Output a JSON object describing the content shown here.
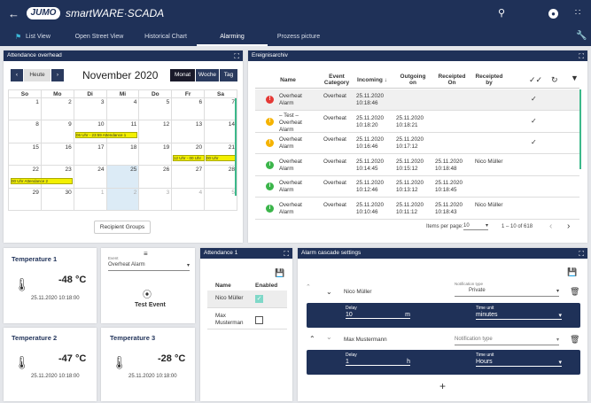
{
  "header": {
    "logo": "JUMO",
    "title": "smartWARE·SCADA"
  },
  "nav": {
    "items": [
      "List View",
      "Open Street View",
      "Historical Chart",
      "Alarming",
      "Prozess picture"
    ]
  },
  "calendar": {
    "panel_title": "Attendance overhead",
    "today": "Heute",
    "month": "November 2020",
    "views": [
      "Monat",
      "Woche",
      "Tag"
    ],
    "days": [
      "So",
      "Mo",
      "Di",
      "Mi",
      "Do",
      "Fr",
      "Sa"
    ],
    "weeks": [
      [
        "1",
        "2",
        "3",
        "4",
        "5",
        "6",
        "7"
      ],
      [
        "8",
        "9",
        "10",
        "11",
        "12",
        "13",
        "14"
      ],
      [
        "15",
        "16",
        "17",
        "18",
        "19",
        "20",
        "21"
      ],
      [
        "22",
        "23",
        "24",
        "25",
        "26",
        "27",
        "28"
      ],
      [
        "29",
        "30",
        "1",
        "2",
        "3",
        "4",
        "5"
      ]
    ],
    "events": {
      "e1": "06 Uhr - 23:59 Attendance 1",
      "e2": "12 Uhr - 00 Uhr",
      "e3": "00 Uhr Attendance 2",
      "e4": "00 Uhr"
    },
    "recipient_groups": "Recipient Groups"
  },
  "archive": {
    "panel_title": "Ereignisarchiv",
    "columns": [
      "Name",
      "Event Category",
      "Incoming",
      "Outgoing on",
      "Receipted On",
      "Receipted by"
    ],
    "rows": [
      {
        "name": "Overheat Alarm",
        "cat": "Overheat",
        "in": "25.11.2020 10:18:46",
        "out": "",
        "rec": "",
        "by": "",
        "status": "red"
      },
      {
        "name": "– Test – Overheat Alarm",
        "cat": "Overheat",
        "in": "25.11.2020 10:18:20",
        "out": "25.11.2020 10:18:21",
        "rec": "",
        "by": "",
        "status": "yellow"
      },
      {
        "name": "Overheat Alarm",
        "cat": "Overheat",
        "in": "25.11.2020 10:16:46",
        "out": "25.11.2020 10:17:12",
        "rec": "",
        "by": "",
        "status": "yellow"
      },
      {
        "name": "Overheat Alarm",
        "cat": "Overheat",
        "in": "25.11.2020 10:14:45",
        "out": "25.11.2020 10:15:12",
        "rec": "25.11.2020 10:18:48",
        "by": "Nico Müller",
        "status": "green"
      },
      {
        "name": "Overheat Alarm",
        "cat": "Overheat",
        "in": "25.11.2020 10:12:46",
        "out": "25.11.2020 10:13:12",
        "rec": "25.11.2020 10:18:45",
        "by": "",
        "status": "green"
      },
      {
        "name": "Overheat Alarm",
        "cat": "Overheat",
        "in": "25.11.2020 10:10:46",
        "out": "25.11.2020 10:11:12",
        "rec": "25.11.2020 10:18:43",
        "by": "Nico Müller",
        "status": "green"
      }
    ],
    "items_per_page_label": "Items per page:",
    "items_per_page": "10",
    "range": "1 – 10 of 618"
  },
  "temps": [
    {
      "title": "Temperature 1",
      "value": "-48 °C",
      "time": "25.11.2020 10:18:00"
    },
    {
      "title": "Temperature 2",
      "value": "-47 °C",
      "time": "25.11.2020 10:18:00"
    },
    {
      "title": "Temperature 3",
      "value": "-28 °C",
      "time": "25.11.2020 10:18:00"
    }
  ],
  "event_card": {
    "label": "Event",
    "value": "Overheat Alarm",
    "button": "Test Event"
  },
  "attendance": {
    "panel_title": "Attendance 1",
    "col_name": "Name",
    "col_enabled": "Enabled",
    "rows": [
      {
        "name": "Nico Müller",
        "enabled": true
      },
      {
        "name": "Max Musterman",
        "enabled": false
      }
    ]
  },
  "cascade": {
    "panel_title": "Alarm cascade settings",
    "entries": [
      {
        "name": "Nico Müller",
        "ntype_label": "Notification type",
        "ntype": "Private",
        "delay_label": "Delay",
        "delay": "10",
        "delay_unit": "m",
        "tunit_label": "Time unit",
        "tunit": "minutes"
      },
      {
        "name": "Max Mustermann",
        "ntype_label": "",
        "ntype": "Notification type",
        "delay_label": "Delay",
        "delay": "1",
        "delay_unit": "h",
        "tunit_label": "Time unit",
        "tunit": "Hours"
      }
    ],
    "add": "+"
  }
}
